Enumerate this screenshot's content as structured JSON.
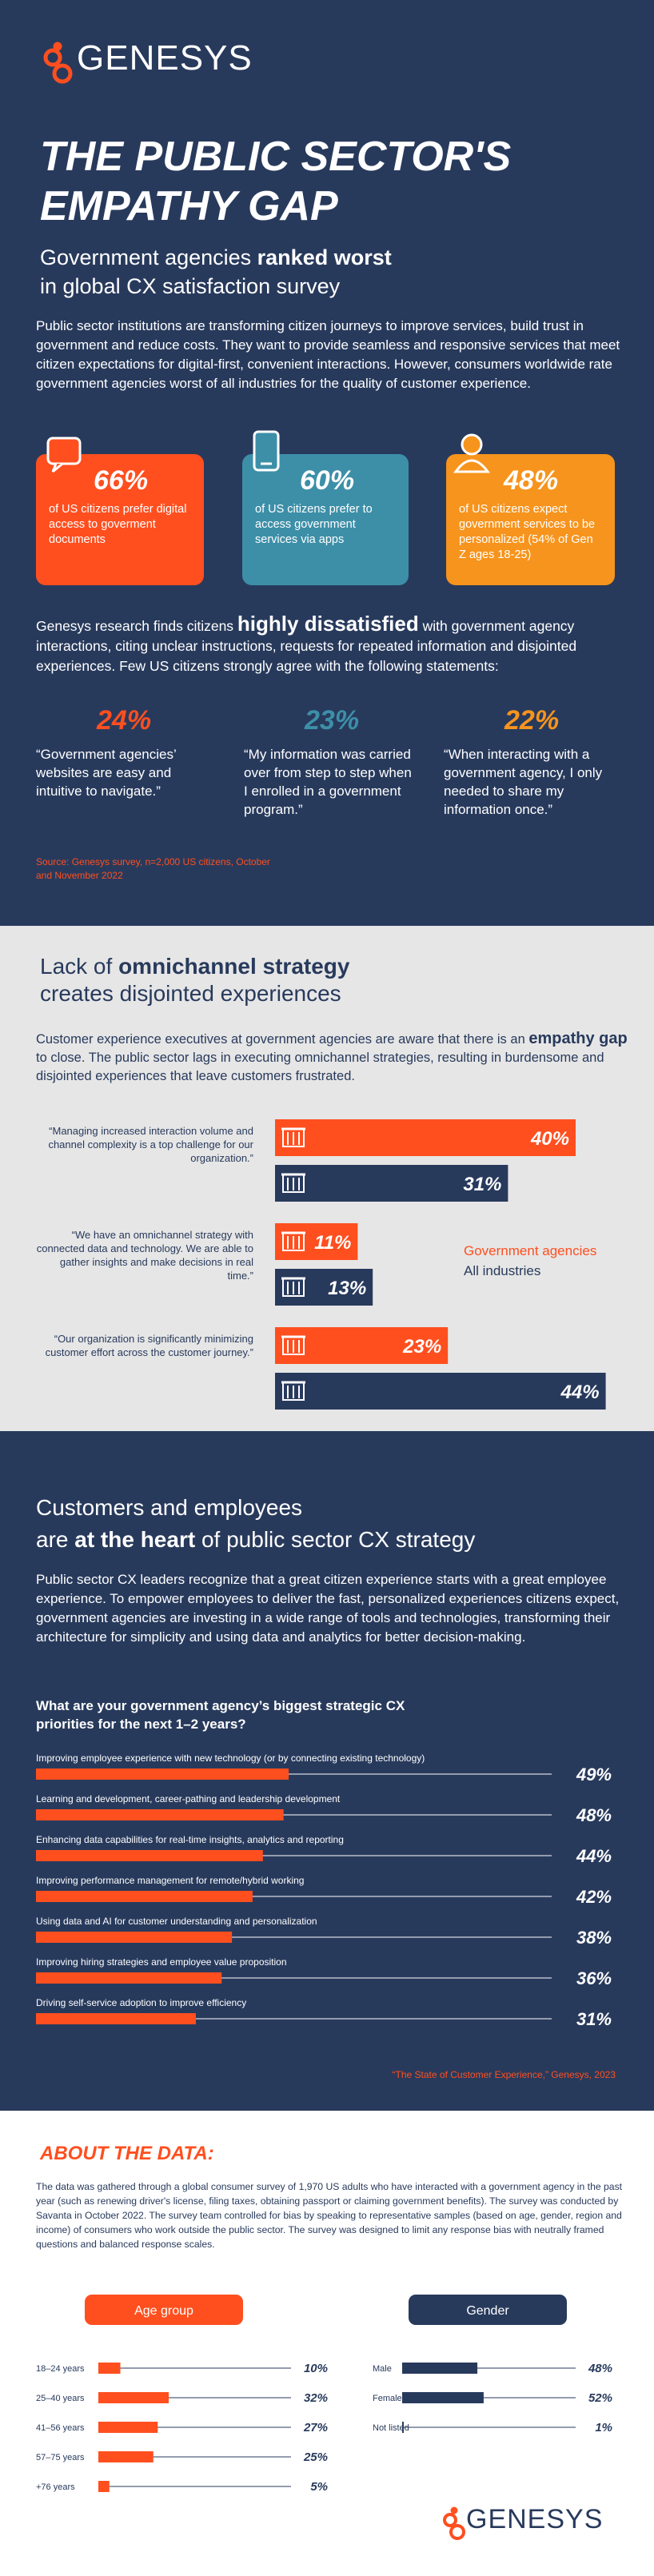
{
  "header": {
    "logo": "GENESYS",
    "title": [
      "THE PUBLIC SECTOR'S",
      "EMPATHY GAP"
    ],
    "subtitle": [
      "Government agencies ",
      "ranked worst",
      "in global CX satisfaction survey"
    ],
    "intro": "Public sector institutions are transforming citizen journeys to improve services, build trust in government and reduce costs. They want to provide seamless and responsive services that meet citizen expectations for digital-first, convenient interactions. However, consumers worldwide rate government agencies worst of all industries for the quality of customer experience."
  },
  "stats": [
    {
      "value": "66%",
      "text": "of US citizens prefer digital access to goverment documents"
    },
    {
      "value": "60%",
      "text": "of US citizens prefer to access government services via apps"
    },
    {
      "value": "48%",
      "text": "of US citizens expect government services to be personalized (54% of Gen Z ages 18-25)"
    }
  ],
  "research": {
    "text": [
      "Genesys research finds citizens ",
      "highly dissatisfied",
      " with government agency interactions, citing unclear instructions, requests for repeated information and disjointed experiences. Few US citizens strongly agree with the following statements:"
    ],
    "statements": [
      {
        "value": "24%",
        "quote": "“Government agencies’ websites are easy and intuitive to navigate.”"
      },
      {
        "value": "23%",
        "quote": "“My information was carried over from step to step when I enrolled in a government program.”"
      },
      {
        "value": "22%",
        "quote": "“When interacting with a government agency, I only needed to share my information once.”"
      }
    ],
    "source": "Source: Genesys survey, n=2,000 US citizens, October and November 2022"
  },
  "omnichannel": {
    "heading": [
      "Lack of ",
      "omnichannel strategy",
      "creates disjointed experiences"
    ],
    "text": [
      "Customer experience executives at government agencies are aware that there is an ",
      "empathy gap",
      " to close. The public sector lags in executing omnichannel strategies, resulting in burdensome and disjointed experiences that leave customers frustrated."
    ]
  },
  "heart": {
    "heading": [
      "Customers and employees",
      "are ",
      "at the heart",
      " of public sector CX strategy"
    ],
    "text": "Public sector CX leaders recognize that a great citizen experience starts with a great employee experience. To empower employees to deliver the fast, personalized experiences citizens expect, government agencies are investing in a wide range of tools and technologies, transforming their architecture for simplicity and using data and analytics for better decision-making."
  },
  "about": {
    "title": "ABOUT THE DATA:",
    "text": "The data was gathered through a global consumer survey of 1,970 US adults who have interacted with a government agency in the past year (such as renewing driver's license, filing taxes, obtaining passport or claiming government benefits). The survey was conducted by Savanta in October 2022. The survey team controlled for bias by speaking to representative samples (based on age, gender, region and income) of consumers who work outside the public sector. The survey was designed to limit any response bias with neutrally framed questions and balanced response scales."
  },
  "footer": {
    "logo": "GENESYS"
  },
  "chart_data": [
    {
      "type": "grouped-hbar",
      "categories": [
        "“Managing increased interaction volume and channel complexity is a top challenge for our organization.”",
        "“We have an omnichannel strategy with connected data and technology. We are able to gather insights and make decisions in real time.”",
        "“Our organization is significantly minimizing customer effort across the customer journey.”"
      ],
      "series": [
        {
          "name": "Government agencies",
          "color": "#ff4f1f",
          "values": [
            40,
            11,
            23
          ],
          "value_labels": [
            "40%",
            "11%",
            "23%"
          ]
        },
        {
          "name": "All industries",
          "color": "#283a5c",
          "values": [
            31,
            13,
            44
          ],
          "value_labels": [
            "31%",
            "13%",
            "44%"
          ]
        }
      ]
    },
    {
      "type": "hbar",
      "title": "What are your government agency’s biggest strategic CX priorities for the next 1–2 years?",
      "categories": [
        "Improving employee experience with new technology (or by connecting existing technology)",
        "Learning and development, career-pathing and leadership development",
        "Enhancing data capabilities for real-time insights, analytics and reporting",
        "Improving performance management for remote/hybrid working",
        "Using data and AI for customer understanding and personalization",
        "Improving hiring strategies and employee value proposition",
        "Driving self-service adoption to improve efficiency"
      ],
      "values": [
        49,
        48,
        44,
        42,
        38,
        36,
        31
      ],
      "value_labels": [
        "49%",
        "48%",
        "44%",
        "42%",
        "38%",
        "36%",
        "31%"
      ],
      "color": "#ff4f1f",
      "source": "“The State of Customer Experience,” Genesys, 2023"
    },
    {
      "type": "hbar-small",
      "title": "Age group",
      "categories": [
        "18–24 years",
        "25–40 years",
        "41–56 years",
        "57–75 years",
        "+76 years"
      ],
      "values": [
        10,
        32,
        27,
        25,
        5
      ],
      "value_labels": [
        "10%",
        "32%",
        "27%",
        "25%",
        "5%"
      ],
      "color": "#ff4f1f"
    },
    {
      "type": "hbar-small",
      "title": "Gender",
      "categories": [
        "Male",
        "Female",
        "Not listed"
      ],
      "values": [
        48,
        52,
        1
      ],
      "value_labels": [
        "48%",
        "52%",
        "1%"
      ],
      "color": "#283a5c"
    }
  ]
}
